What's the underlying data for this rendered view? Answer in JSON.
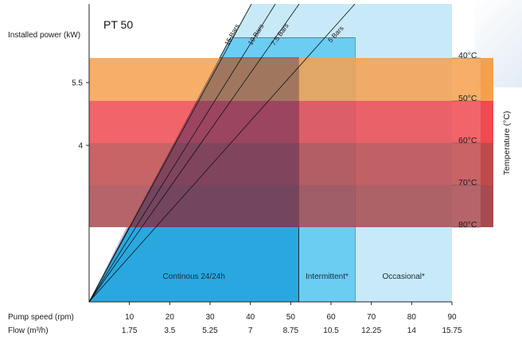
{
  "chart_data": {
    "type": "area",
    "title": "PT 50",
    "ylabel": "Installed power (kW)",
    "y_ticks": [
      "5.5",
      "4"
    ],
    "x_axes": [
      {
        "name": "Pump speed (rpm)",
        "ticks": [
          "10",
          "20",
          "30",
          "40",
          "50",
          "60",
          "70",
          "80",
          "90"
        ]
      },
      {
        "name": "Flow (m³/h)",
        "ticks": [
          "1.75",
          "3.5",
          "5.25",
          "7",
          "8.75",
          "10.5",
          "12.25",
          "14",
          "15.75"
        ]
      }
    ],
    "xlim": [
      0,
      90
    ],
    "zones": [
      {
        "label": "Continous 24/24h",
        "rpm_max": 52,
        "color": "#29a8e0"
      },
      {
        "label": "Intermittent*",
        "rpm_max": 66,
        "color": "#6ccdf2"
      },
      {
        "label": "Occasional*",
        "rpm_max": 90,
        "color": "#c8e9f8"
      }
    ],
    "pressure_lines": [
      "15 Bars",
      "10 Bars",
      "7.5 Bars",
      "5 Bars"
    ],
    "temperature": {
      "label": "Temperature (°C)",
      "ticks": [
        "40°C",
        "50°C",
        "60°C",
        "70°C",
        "80°C"
      ],
      "band_colors": [
        "#f6a04d",
        "#ee4a50",
        "#c0494b",
        "#a84a4f"
      ]
    }
  }
}
